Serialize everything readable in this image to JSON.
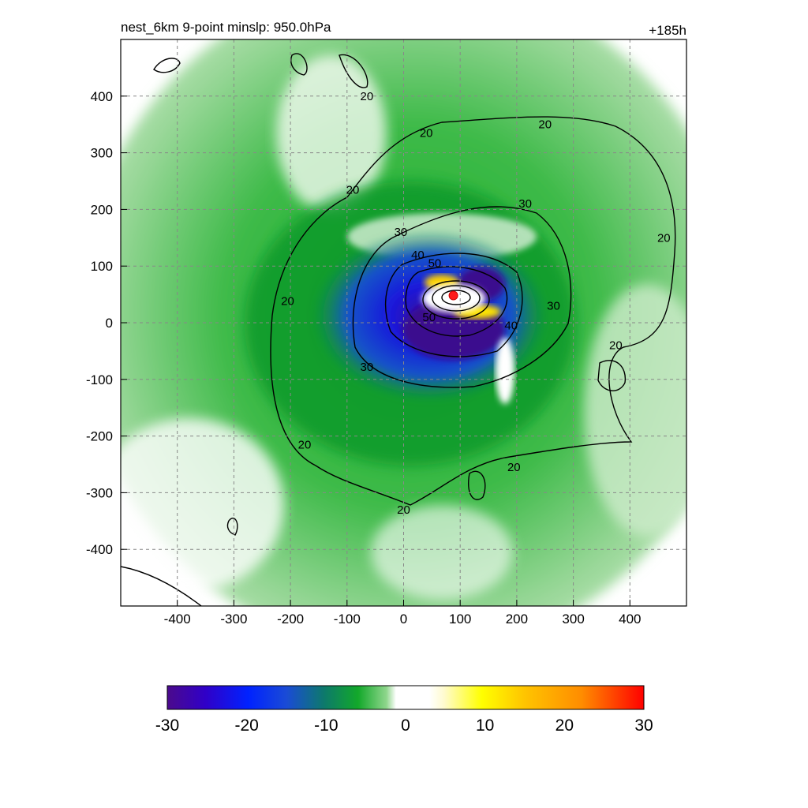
{
  "chart_data": {
    "type": "heatmap",
    "title": "nest_6km  9-point minslp: 950.0hPa",
    "time_label": "+185h",
    "xlim": [
      -500,
      500
    ],
    "ylim": [
      -500,
      500
    ],
    "x_ticks": [
      -400,
      -300,
      -200,
      -100,
      0,
      100,
      200,
      300,
      400
    ],
    "y_ticks": [
      -400,
      -300,
      -200,
      -100,
      0,
      100,
      200,
      300,
      400
    ],
    "grid": true,
    "min_slp_hpa": 950.0,
    "storm_center": {
      "x": 88,
      "y": 48
    },
    "colorbar": {
      "min": -30,
      "max": 30,
      "ticks": [
        -30,
        -20,
        -10,
        0,
        10,
        20,
        30
      ],
      "placement": "bottom"
    },
    "contour_labels": [
      {
        "x": 250,
        "y": 350,
        "value": "20"
      },
      {
        "x": 40,
        "y": 335,
        "value": "20"
      },
      {
        "x": -90,
        "y": 235,
        "value": "20"
      },
      {
        "x": -205,
        "y": 38,
        "value": "20"
      },
      {
        "x": -175,
        "y": -215,
        "value": "20"
      },
      {
        "x": 0,
        "y": -330,
        "value": "20"
      },
      {
        "x": 195,
        "y": -255,
        "value": "20"
      },
      {
        "x": 375,
        "y": -40,
        "value": "20"
      },
      {
        "x": 460,
        "y": 150,
        "value": "20"
      },
      {
        "x": -65,
        "y": 400,
        "value": "20"
      },
      {
        "x": -5,
        "y": 160,
        "value": "30"
      },
      {
        "x": 215,
        "y": 210,
        "value": "30"
      },
      {
        "x": 265,
        "y": 30,
        "value": "30"
      },
      {
        "x": -65,
        "y": -78,
        "value": "30"
      },
      {
        "x": 25,
        "y": 120,
        "value": "40"
      },
      {
        "x": 190,
        "y": -5,
        "value": "40"
      },
      {
        "x": 55,
        "y": 105,
        "value": "50"
      },
      {
        "x": 45,
        "y": 10,
        "value": "50"
      }
    ]
  }
}
